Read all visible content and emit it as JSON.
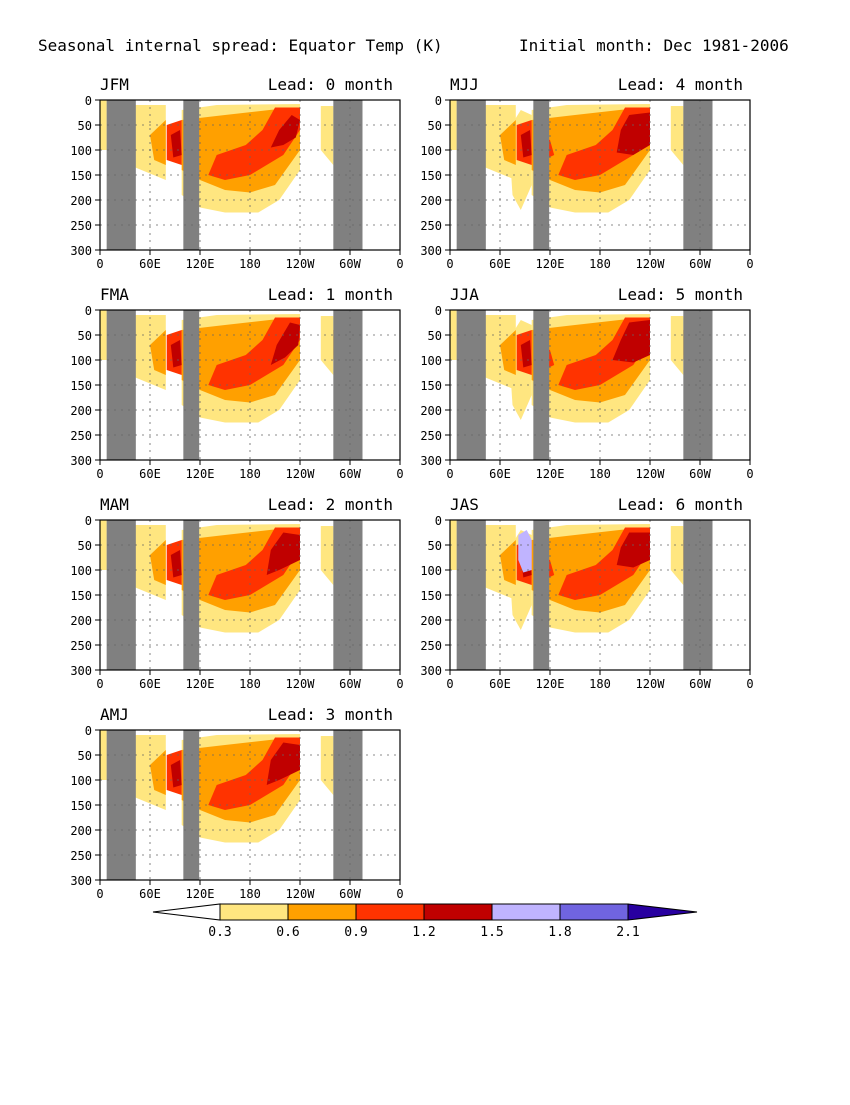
{
  "header": {
    "title": "Seasonal internal spread: Equator Temp (K)",
    "initial": "Initial month: Dec 1981-2006"
  },
  "chart_data": [
    {
      "type": "contour",
      "season": "JFM",
      "lead": "Lead: 0 month",
      "xtick_labels": [
        "0",
        "60E",
        "120E",
        "180",
        "120W",
        "60W",
        "0"
      ],
      "ytick_labels": [
        "0",
        "50",
        "100",
        "150",
        "200",
        "250",
        "300"
      ],
      "ylim": [
        300,
        0
      ],
      "xlim": [
        0,
        360
      ]
    },
    {
      "type": "contour",
      "season": "FMA",
      "lead": "Lead: 1 month",
      "xtick_labels": [
        "0",
        "60E",
        "120E",
        "180",
        "120W",
        "60W",
        "0"
      ],
      "ytick_labels": [
        "0",
        "50",
        "100",
        "150",
        "200",
        "250",
        "300"
      ],
      "ylim": [
        300,
        0
      ],
      "xlim": [
        0,
        360
      ]
    },
    {
      "type": "contour",
      "season": "MAM",
      "lead": "Lead: 2 month",
      "xtick_labels": [
        "0",
        "60E",
        "120E",
        "180",
        "120W",
        "60W",
        "0"
      ],
      "ytick_labels": [
        "0",
        "50",
        "100",
        "150",
        "200",
        "250",
        "300"
      ],
      "ylim": [
        300,
        0
      ],
      "xlim": [
        0,
        360
      ]
    },
    {
      "type": "contour",
      "season": "AMJ",
      "lead": "Lead: 3 month",
      "xtick_labels": [
        "0",
        "60E",
        "120E",
        "180",
        "120W",
        "60W",
        "0"
      ],
      "ytick_labels": [
        "0",
        "50",
        "100",
        "150",
        "200",
        "250",
        "300"
      ],
      "ylim": [
        300,
        0
      ],
      "xlim": [
        0,
        360
      ]
    },
    {
      "type": "contour",
      "season": "MJJ",
      "lead": "Lead: 4 month",
      "xtick_labels": [
        "0",
        "60E",
        "120E",
        "180",
        "120W",
        "60W",
        "0"
      ],
      "ytick_labels": [
        "0",
        "50",
        "100",
        "150",
        "200",
        "250",
        "300"
      ],
      "ylim": [
        300,
        0
      ],
      "xlim": [
        0,
        360
      ]
    },
    {
      "type": "contour",
      "season": "JJA",
      "lead": "Lead: 5 month",
      "xtick_labels": [
        "0",
        "60E",
        "120E",
        "180",
        "120W",
        "60W",
        "0"
      ],
      "ytick_labels": [
        "0",
        "50",
        "100",
        "150",
        "200",
        "250",
        "300"
      ],
      "ylim": [
        300,
        0
      ],
      "xlim": [
        0,
        360
      ]
    },
    {
      "type": "contour",
      "season": "JAS",
      "lead": "Lead: 6 month",
      "xtick_labels": [
        "0",
        "60E",
        "120E",
        "180",
        "120W",
        "60W",
        "0"
      ],
      "ytick_labels": [
        "0",
        "50",
        "100",
        "150",
        "200",
        "250",
        "300"
      ],
      "ylim": [
        300,
        0
      ],
      "xlim": [
        0,
        360
      ]
    }
  ],
  "colorbar": {
    "labels": [
      "0.3",
      "0.6",
      "0.9",
      "1.2",
      "1.5",
      "1.8",
      "2.1"
    ],
    "colors": [
      "#ffffff",
      "#ffe680",
      "#ffa000",
      "#ff3300",
      "#c00000",
      "#c0b4ff",
      "#7064e0",
      "#2800a0"
    ]
  },
  "colors": {
    "land": "#808080",
    "level1": "#ffe680",
    "level2": "#ffa000",
    "level3": "#ff3300",
    "level4": "#c00000",
    "level5": "#c0b4ff"
  }
}
